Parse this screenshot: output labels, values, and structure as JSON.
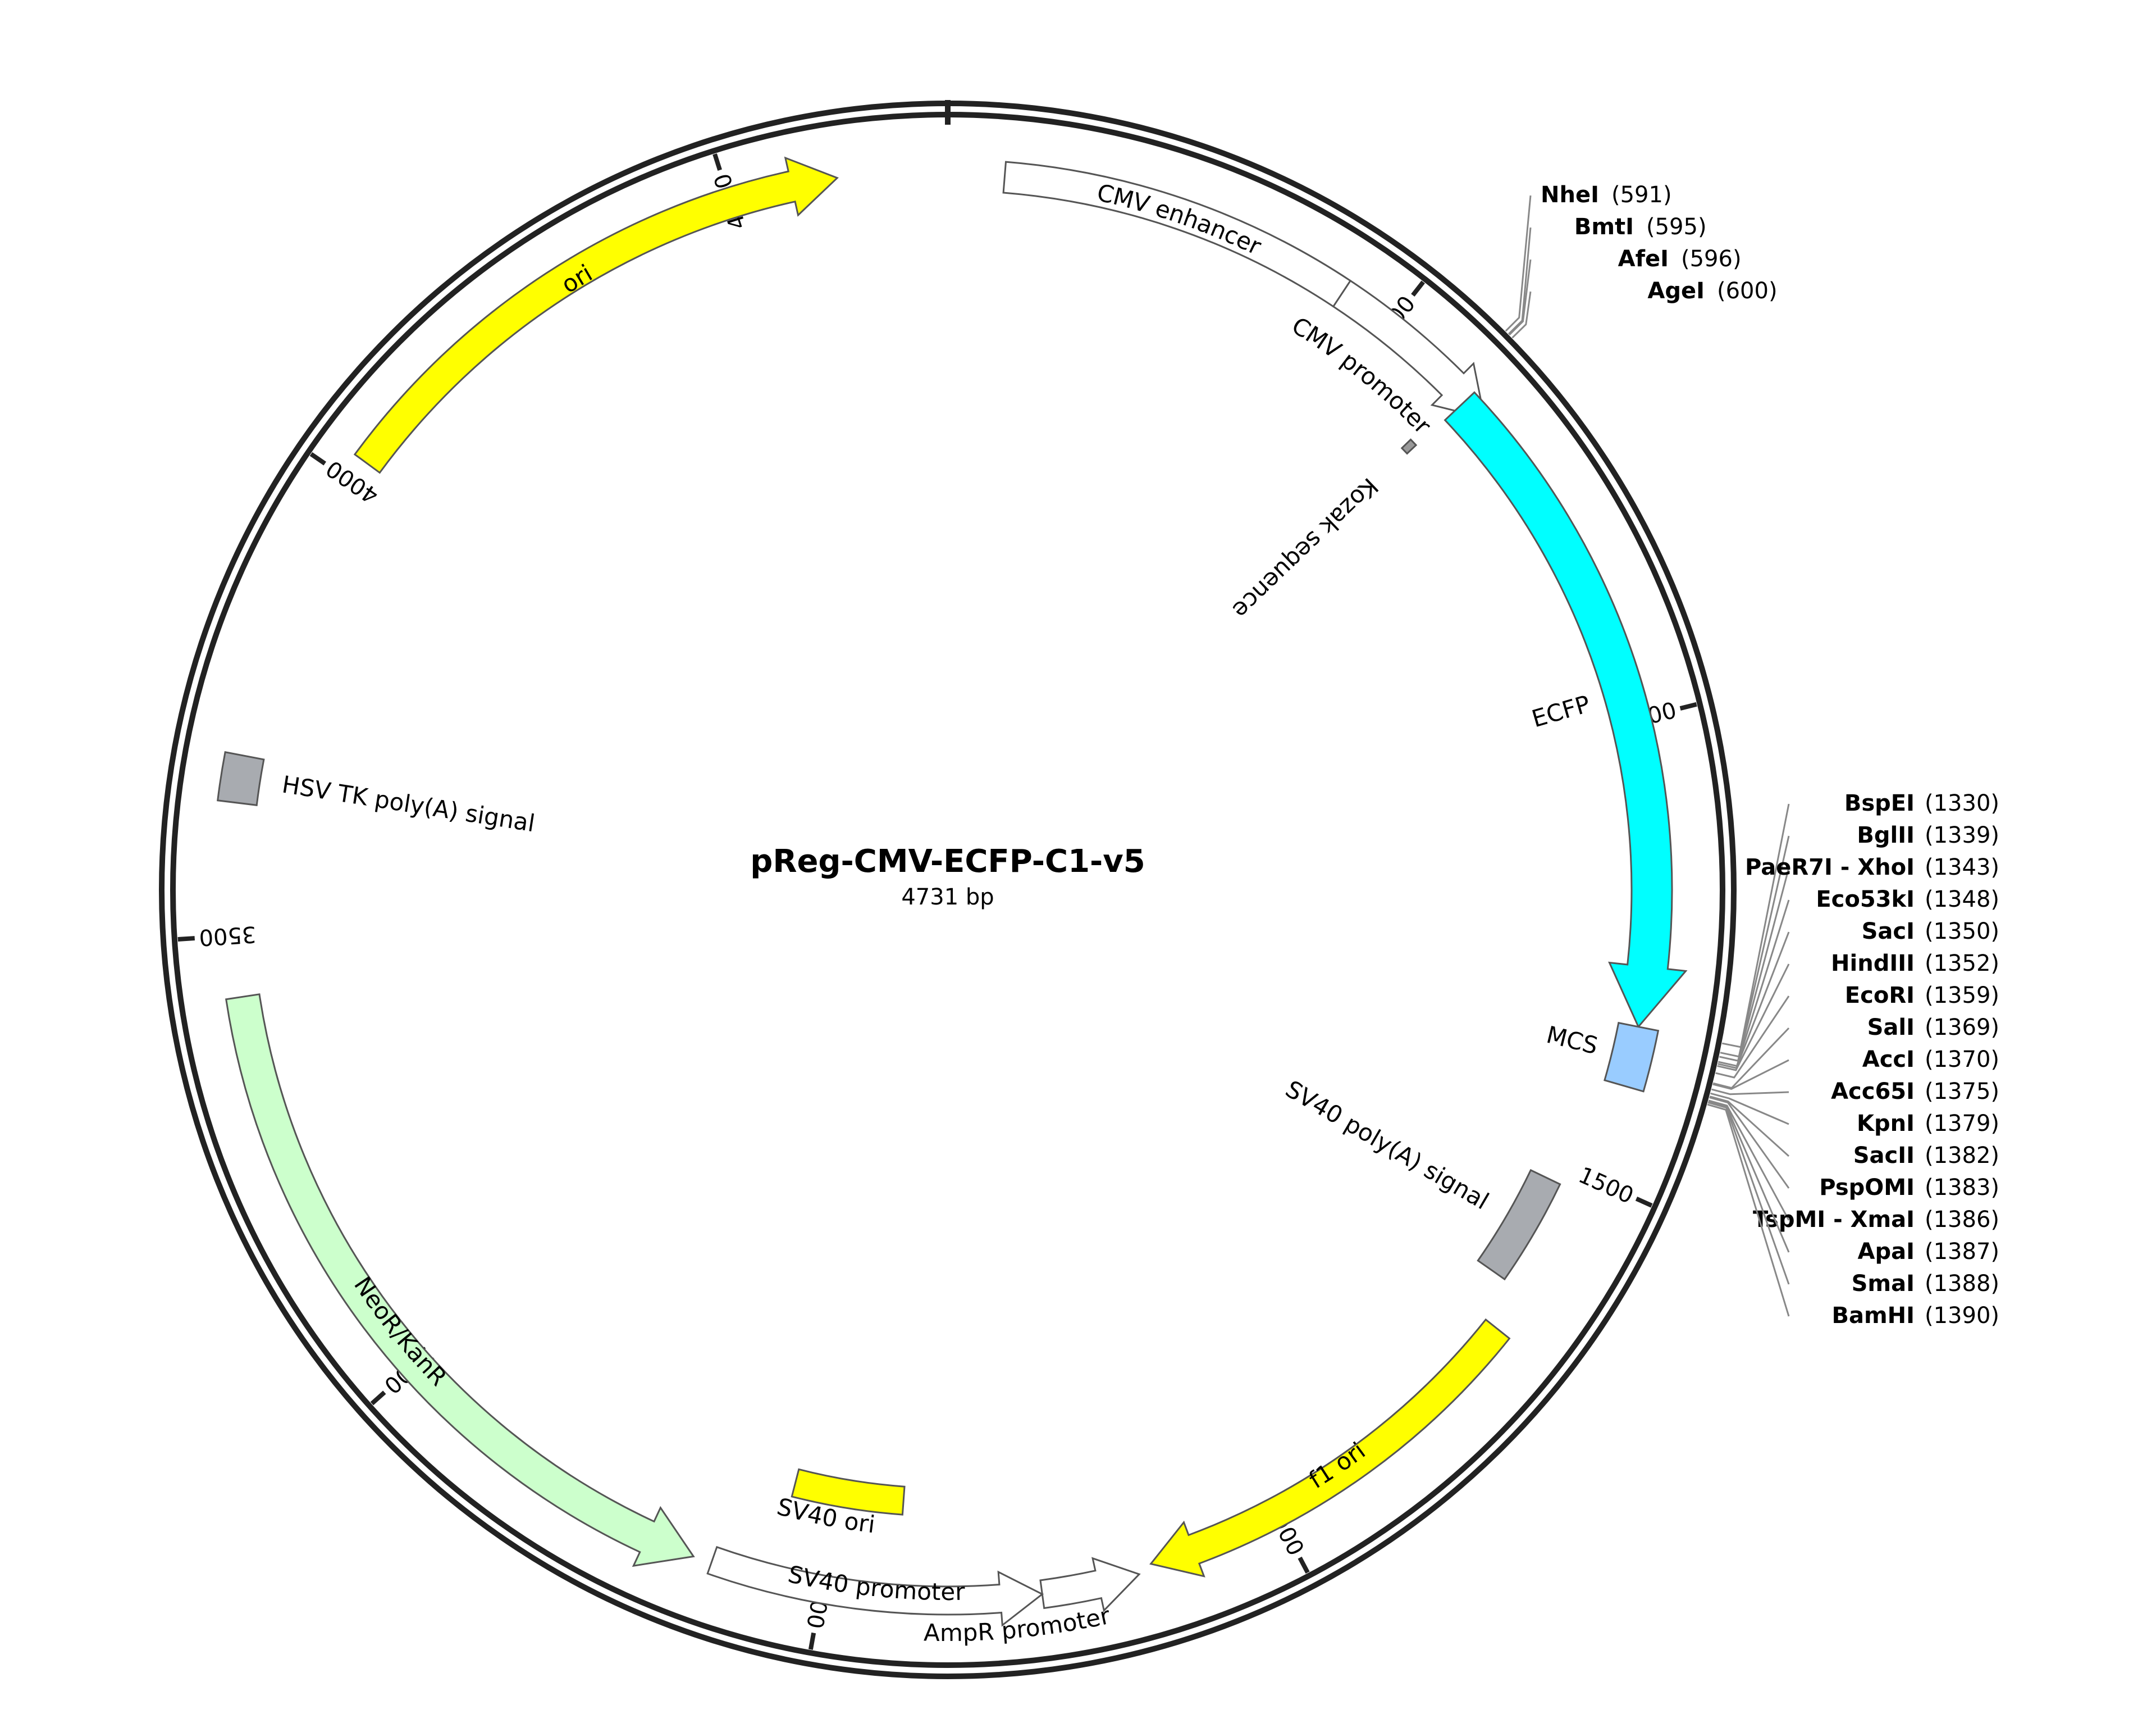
{
  "plasmid": {
    "name": "pReg-CMV-ECFP-C1-v5",
    "length_label": "4731 bp",
    "length": 4731
  },
  "ticks": [
    {
      "pos": 500,
      "label": "500"
    },
    {
      "pos": 1000,
      "label": "1000"
    },
    {
      "pos": 1500,
      "label": "1500"
    },
    {
      "pos": 2000,
      "label": "2000"
    },
    {
      "pos": 2500,
      "label": "2500"
    },
    {
      "pos": 3000,
      "label": "3000"
    },
    {
      "pos": 3500,
      "label": "3500"
    },
    {
      "pos": 4000,
      "label": "4000"
    },
    {
      "pos": 4500,
      "label": "4500"
    }
  ],
  "features": [
    {
      "id": "cmv-enhancer",
      "label": "CMV enhancer",
      "start": 60,
      "end": 440,
      "strand": 1,
      "type": "segment",
      "color": "#ffffff"
    },
    {
      "id": "cmv-promoter",
      "label": "CMV promoter",
      "start": 440,
      "end": 640,
      "strand": 1,
      "type": "arrow",
      "color": "#ffffff"
    },
    {
      "id": "kozak",
      "label": "Kozak sequence",
      "start": 602,
      "end": 611,
      "strand": 1,
      "type": "box",
      "color": "#999999"
    },
    {
      "id": "ecfp",
      "label": "ECFP",
      "start": 613,
      "end": 1330,
      "strand": 1,
      "type": "arrow",
      "color": "#00ffff"
    },
    {
      "id": "mcs",
      "label": "MCS",
      "start": 1330,
      "end": 1395,
      "strand": 0,
      "type": "box",
      "color": "#99ccff"
    },
    {
      "id": "sv40-polya",
      "label": "SV40 poly(A) signal",
      "start": 1520,
      "end": 1642,
      "strand": 0,
      "type": "box",
      "color": "#a8abb0"
    },
    {
      "id": "f1-ori",
      "label": "f1 ori",
      "start": 1690,
      "end": 2145,
      "strand": 1,
      "type": "arrow",
      "color": "#ffff00"
    },
    {
      "id": "ampr-promoter",
      "label": "AmpR promoter",
      "start": 2160,
      "end": 2265,
      "strand": -1,
      "type": "arrow",
      "color": "#ffffff"
    },
    {
      "id": "sv40-promoter",
      "label": "SV40 promoter",
      "start": 2265,
      "end": 2620,
      "strand": -1,
      "type": "arrow",
      "color": "#ffffff"
    },
    {
      "id": "sv40-ori",
      "label": "SV40 ori",
      "start": 2420,
      "end": 2555,
      "strand": 0,
      "type": "box",
      "color": "#ffff00"
    },
    {
      "id": "neor-kanr",
      "label": "NeoR/KanR",
      "start": 2640,
      "end": 3435,
      "strand": -1,
      "type": "arrow",
      "color": "#ccffcc"
    },
    {
      "id": "hsv-tk-polya",
      "label": "HSV TK poly(A) signal",
      "start": 3640,
      "end": 3690,
      "strand": 0,
      "type": "box",
      "color": "#a8abb0"
    },
    {
      "id": "ori",
      "label": "ori",
      "start": 4025,
      "end": 4615,
      "strand": 1,
      "type": "arrow",
      "color": "#ffff00"
    }
  ],
  "sites_top": [
    {
      "name": "NheI",
      "pos": "(591)",
      "bp": 591
    },
    {
      "name": "BmtI",
      "pos": "(595)",
      "bp": 595
    },
    {
      "name": "AfeI",
      "pos": "(596)",
      "bp": 596
    },
    {
      "name": "AgeI",
      "pos": "(600)",
      "bp": 600
    }
  ],
  "sites_mcs": [
    {
      "name": "BspEI",
      "pos": "(1330)",
      "bp": 1330
    },
    {
      "name": "BglII",
      "pos": "(1339)",
      "bp": 1339
    },
    {
      "name": "PaeR7I - XhoI",
      "pos": "(1343)",
      "bp": 1343
    },
    {
      "name": "Eco53kI",
      "pos": "(1348)",
      "bp": 1348
    },
    {
      "name": "SacI",
      "pos": "(1350)",
      "bp": 1350
    },
    {
      "name": "HindIII",
      "pos": "(1352)",
      "bp": 1352
    },
    {
      "name": "EcoRI",
      "pos": "(1359)",
      "bp": 1359
    },
    {
      "name": "SalI",
      "pos": "(1369)",
      "bp": 1369
    },
    {
      "name": "AccI",
      "pos": "(1370)",
      "bp": 1370
    },
    {
      "name": "Acc65I",
      "pos": "(1375)",
      "bp": 1375
    },
    {
      "name": "KpnI",
      "pos": "(1379)",
      "bp": 1379
    },
    {
      "name": "SacII",
      "pos": "(1382)",
      "bp": 1382
    },
    {
      "name": "PspOMI",
      "pos": "(1383)",
      "bp": 1383
    },
    {
      "name": "TspMI - XmaI",
      "pos": "(1386)",
      "bp": 1386
    },
    {
      "name": "ApaI",
      "pos": "(1387)",
      "bp": 1387
    },
    {
      "name": "SmaI",
      "pos": "(1388)",
      "bp": 1388
    },
    {
      "name": "BamHI",
      "pos": "(1390)",
      "bp": 1390
    }
  ]
}
